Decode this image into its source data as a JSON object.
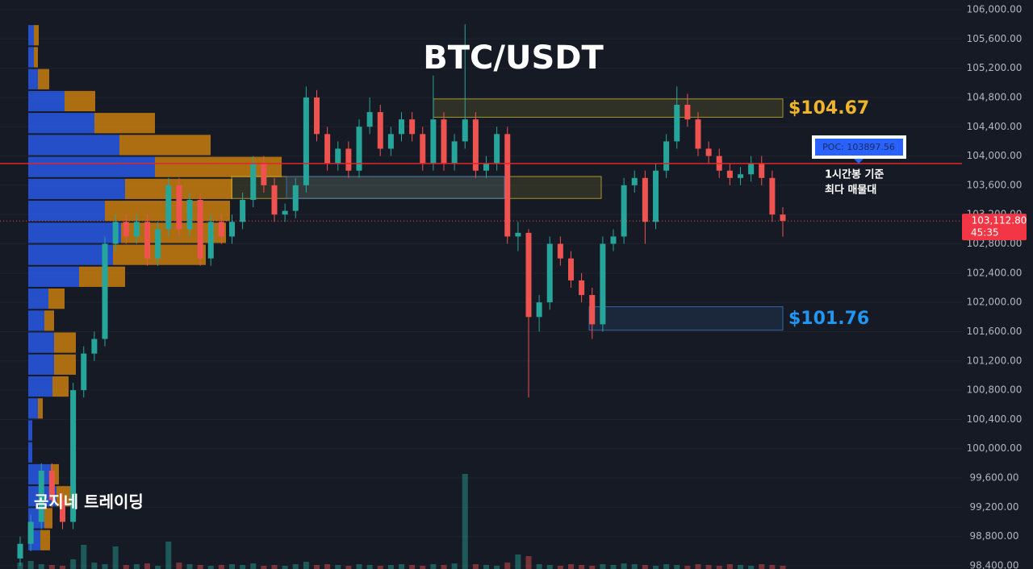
{
  "chart_data": {
    "type": "candlestick",
    "title": "BTC/USDT",
    "watermark": "곰지네 트레이딩",
    "ylim": [
      98356,
      106132
    ],
    "yticks": [
      {
        "value": 98400,
        "label": "98,400.00"
      },
      {
        "value": 98800,
        "label": "98,800.00"
      },
      {
        "value": 99200,
        "label": "99,200.00"
      },
      {
        "value": 99600,
        "label": "99,600.00"
      },
      {
        "value": 100000,
        "label": "100,000.00"
      },
      {
        "value": 100400,
        "label": "100,400.00"
      },
      {
        "value": 100800,
        "label": "100,800.00"
      },
      {
        "value": 101200,
        "label": "101,200.00"
      },
      {
        "value": 101600,
        "label": "101,600.00"
      },
      {
        "value": 102000,
        "label": "102,000.00"
      },
      {
        "value": 102400,
        "label": "102,400.00"
      },
      {
        "value": 102800,
        "label": "102,800.00"
      },
      {
        "value": 103200,
        "label": "103,200.00"
      },
      {
        "value": 103600,
        "label": "103,600.00"
      },
      {
        "value": 104000,
        "label": "104,000.00"
      },
      {
        "value": 104400,
        "label": "104,400.00"
      },
      {
        "value": 104800,
        "label": "104,800.00"
      },
      {
        "value": 105200,
        "label": "105,200.00"
      },
      {
        "value": 105600,
        "label": "105,600.00"
      },
      {
        "value": 106000,
        "label": "106,000.00"
      }
    ],
    "grid": true,
    "up_color": "#26a69a",
    "down_color": "#ef5350",
    "open": [
      98500,
      98700,
      99000,
      99700,
      99300,
      99000,
      100800,
      101300,
      101500,
      102800,
      103100,
      102900,
      103100,
      102600,
      103000,
      103600,
      103000,
      103400,
      102600,
      103100,
      102900,
      103100,
      103400,
      103900,
      103600,
      103200,
      103250,
      103600,
      104800,
      104300,
      103900,
      104100,
      103800,
      104400,
      104600,
      104100,
      104300,
      104500,
      104300,
      103900,
      104500,
      103900,
      104200,
      104500,
      103800,
      103900,
      104300,
      102900,
      102950,
      101800,
      102000,
      102800,
      102600,
      102300,
      102100,
      101700,
      102800,
      102900,
      103600,
      103700,
      103100,
      103800,
      104200,
      104700,
      104500,
      104100,
      104000,
      103800,
      103700,
      103750,
      103900,
      103700,
      103200
    ],
    "high": [
      98800,
      99100,
      99800,
      99800,
      99400,
      100900,
      101400,
      101600,
      102900,
      103200,
      103200,
      103200,
      103200,
      103100,
      103700,
      103700,
      103500,
      103500,
      103200,
      103200,
      103200,
      103500,
      104000,
      104000,
      103700,
      103350,
      103700,
      104950,
      104900,
      104400,
      104200,
      104200,
      104500,
      104800,
      104700,
      104400,
      104600,
      104600,
      104400,
      105100,
      104600,
      104300,
      105800,
      104600,
      104000,
      104400,
      104400,
      103100,
      103000,
      102100,
      102900,
      102900,
      102700,
      102400,
      102200,
      102900,
      103000,
      103700,
      103800,
      103800,
      103900,
      104300,
      104950,
      104850,
      104600,
      104200,
      104100,
      103900,
      103850,
      104000,
      104000,
      103800,
      103300
    ],
    "low": [
      98400,
      98600,
      98900,
      99200,
      98900,
      98900,
      100700,
      101200,
      101400,
      102700,
      102800,
      102800,
      102500,
      102500,
      102900,
      102900,
      102900,
      102500,
      102500,
      102800,
      102800,
      103000,
      103300,
      103500,
      103100,
      103100,
      103150,
      103500,
      104200,
      103800,
      103800,
      103700,
      103700,
      104300,
      104000,
      104000,
      104200,
      104200,
      103800,
      103800,
      103800,
      103800,
      104100,
      103700,
      103700,
      103800,
      102800,
      102700,
      100700,
      101600,
      101900,
      102500,
      102200,
      102000,
      101500,
      101600,
      102700,
      102800,
      103500,
      102800,
      103000,
      103700,
      104100,
      104400,
      104000,
      103900,
      103700,
      103600,
      103600,
      103650,
      103600,
      103100,
      102900
    ],
    "close": [
      98700,
      99000,
      99700,
      99300,
      99000,
      100800,
      101300,
      101500,
      102800,
      103100,
      102900,
      103100,
      102600,
      103000,
      103600,
      103000,
      103400,
      102600,
      103100,
      102900,
      103100,
      103400,
      103900,
      103600,
      103200,
      103250,
      103600,
      104800,
      104300,
      103900,
      104100,
      103800,
      104400,
      104600,
      104100,
      104300,
      104500,
      104300,
      103900,
      104500,
      103900,
      104200,
      104500,
      103800,
      103900,
      104300,
      102900,
      102950,
      101800,
      102000,
      102800,
      102600,
      102300,
      102100,
      101700,
      102800,
      102900,
      103600,
      103700,
      103100,
      103800,
      104200,
      104700,
      104500,
      104100,
      104000,
      103800,
      103700,
      103750,
      103900,
      103700,
      103200,
      103112.8
    ],
    "volume": [
      8,
      10,
      6,
      5,
      4,
      12,
      30,
      8,
      6,
      28,
      5,
      6,
      7,
      4,
      34,
      8,
      6,
      5,
      4,
      5,
      6,
      5,
      7,
      4,
      5,
      4,
      6,
      9,
      5,
      6,
      5,
      4,
      6,
      5,
      4,
      5,
      6,
      5,
      4,
      6,
      5,
      7,
      118,
      6,
      5,
      4,
      8,
      18,
      16,
      6,
      5,
      4,
      6,
      5,
      4,
      6,
      5,
      7,
      6,
      5,
      4,
      6,
      5,
      4,
      6,
      5,
      4,
      6,
      5,
      4,
      6,
      5,
      4
    ],
    "volume_profile": {
      "bins": [
        105800,
        105500,
        105200,
        104900,
        104600,
        104300,
        104000,
        103700,
        103400,
        103100,
        102800,
        102500,
        102200,
        101900,
        101600,
        101300,
        101000,
        100700,
        100400,
        100100,
        99800,
        99500,
        99200,
        98900,
        98600
      ],
      "buy": [
        7,
        7,
        12,
        45,
        82,
        113,
        157,
        120,
        95,
        115,
        105,
        63,
        25,
        20,
        32,
        32,
        30,
        12,
        5,
        5,
        28,
        35,
        20,
        15
      ],
      "sell": [
        6,
        5,
        14,
        38,
        75,
        113,
        157,
        133,
        155,
        130,
        115,
        57,
        20,
        12,
        27,
        27,
        20,
        6,
        0,
        0,
        10,
        20,
        10,
        12
      ],
      "buy_color": "#2962ff",
      "sell_color": "#e08a0b"
    },
    "zones": [
      {
        "low": 104530,
        "high": 104780,
        "color": "#c8b432",
        "label": "$104.67",
        "label_color": "#f0b429"
      },
      {
        "low": 101620,
        "high": 101940,
        "color": "#3a78c0",
        "label": "$101.76",
        "label_color": "#2196f3"
      },
      {
        "low": 103420,
        "high": 103720,
        "color": "#c8b432"
      },
      {
        "low": 103420,
        "high": 103720,
        "color": "#3a78c0"
      }
    ],
    "poc": {
      "value": 103897.56,
      "label": "POC: 103897.56",
      "note": [
        "1시간봉 기준",
        "최다 매물대"
      ],
      "color": "#e0262c"
    },
    "last_price": {
      "value": 103112.8,
      "label": "103,112.80",
      "countdown": "45:35"
    }
  }
}
